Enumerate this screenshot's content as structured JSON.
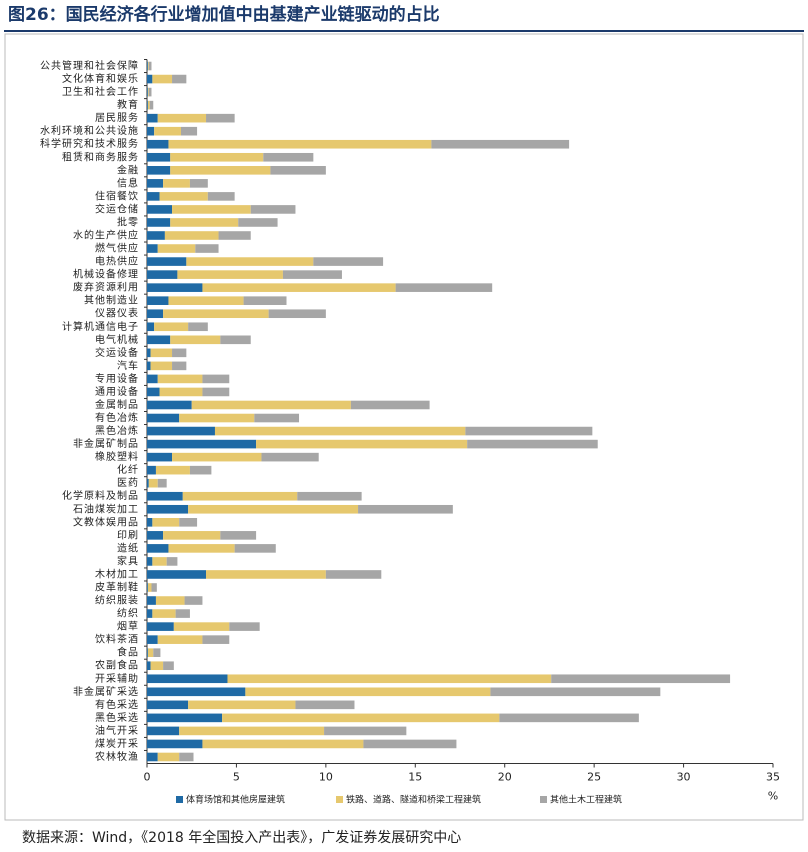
{
  "chart_data": {
    "type": "stacked_barh",
    "title": "图26：国民经济各行业增加值中由基建产业链驱动的占比",
    "source": "数据来源：Wind，《2018 年全国投入产出表》，广发证券发展研究中心",
    "xlabel": "%",
    "categories": [
      "公共管理和社会保障",
      "文化体育和娱乐",
      "卫生和社会工作",
      "教育",
      "居民服务",
      "水利环境和公共设施",
      "科学研究和技术服务",
      "租赁和商务服务",
      "金融",
      "信息",
      "住宿餐饮",
      "交运仓储",
      "批零",
      "水的生产供应",
      "燃气供应",
      "电热供应",
      "机械设备修理",
      "废弃资源利用",
      "其他制造业",
      "仪器仪表",
      "计算机通信电子",
      "电气机械",
      "交运设备",
      "汽车",
      "专用设备",
      "通用设备",
      "金属制品",
      "有色冶炼",
      "黑色冶炼",
      "非金属矿制品",
      "橡胶塑料",
      "化纤",
      "医药",
      "化学原料及制品",
      "石油煤炭加工",
      "文教体娱用品",
      "印刷",
      "造纸",
      "家具",
      "木材加工",
      "皮革制鞋",
      "纺织服装",
      "纺织",
      "烟草",
      "饮料茶酒",
      "食品",
      "农副食品",
      "开采辅助",
      "非金属矿采选",
      "有色采选",
      "黑色采选",
      "油气开采",
      "煤炭开采",
      "农林牧渔"
    ],
    "series": [
      {
        "name": "体育场馆和其他房屋建筑",
        "color": "#1f6aa5",
        "values": [
          0.05,
          0.3,
          0.05,
          0.05,
          0.6,
          0.4,
          1.2,
          1.3,
          1.3,
          0.9,
          0.7,
          1.4,
          1.3,
          1.0,
          0.6,
          2.2,
          1.7,
          3.1,
          1.2,
          0.9,
          0.4,
          1.3,
          0.2,
          0.2,
          0.6,
          0.7,
          2.5,
          1.8,
          3.8,
          6.1,
          1.4,
          0.5,
          0.1,
          2.0,
          2.3,
          0.3,
          0.9,
          1.2,
          0.3,
          3.3,
          0.05,
          0.5,
          0.3,
          1.5,
          0.6,
          0.05,
          0.2,
          4.5,
          5.5,
          2.3,
          4.2,
          1.8,
          3.1,
          0.6
        ]
      },
      {
        "name": "铁路、道路、隧道和桥梁工程建筑",
        "color": "#e6c86e",
        "values": [
          0.05,
          1.1,
          0.05,
          0.1,
          2.7,
          1.5,
          14.7,
          5.2,
          5.6,
          1.5,
          2.7,
          4.4,
          3.8,
          3.0,
          2.1,
          7.1,
          5.9,
          10.8,
          4.2,
          5.9,
          1.9,
          2.8,
          1.2,
          1.2,
          2.5,
          2.4,
          8.9,
          4.2,
          14.0,
          11.8,
          5.0,
          1.9,
          0.5,
          6.4,
          9.5,
          1.5,
          3.2,
          3.7,
          0.8,
          6.7,
          0.2,
          1.6,
          1.3,
          3.1,
          2.5,
          0.3,
          0.7,
          18.1,
          13.7,
          6.0,
          15.5,
          8.1,
          9.0,
          1.2
        ]
      },
      {
        "name": "其他土木工程建筑",
        "color": "#a6a6a6",
        "values": [
          0.15,
          0.8,
          0.15,
          0.2,
          1.6,
          0.9,
          7.7,
          2.8,
          3.1,
          1.0,
          1.5,
          2.5,
          2.2,
          1.8,
          1.3,
          3.9,
          3.3,
          5.4,
          2.4,
          3.2,
          1.1,
          1.7,
          0.8,
          0.8,
          1.5,
          1.5,
          4.4,
          2.5,
          7.1,
          7.3,
          3.2,
          1.2,
          0.5,
          3.6,
          5.3,
          1.0,
          2.0,
          2.3,
          0.6,
          3.1,
          0.3,
          1.0,
          0.8,
          1.7,
          1.5,
          0.4,
          0.6,
          10.0,
          9.5,
          3.3,
          7.8,
          4.6,
          5.2,
          0.8
        ]
      }
    ],
    "xlim": [
      0,
      35
    ],
    "xticks": [
      0,
      5,
      10,
      15,
      20,
      25,
      30,
      35
    ]
  }
}
